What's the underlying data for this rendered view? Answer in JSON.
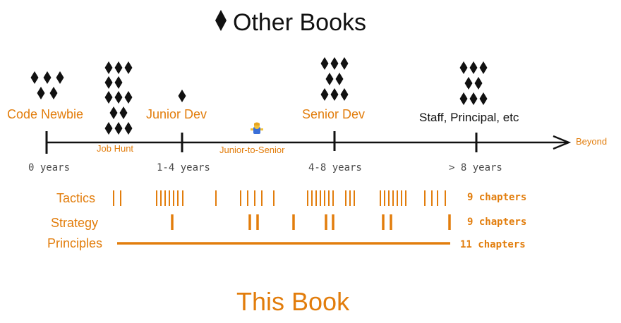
{
  "header": {
    "title": "Other Books",
    "title_icon": "diamond-icon"
  },
  "footer": {
    "title": "This Book"
  },
  "timeline": {
    "end_label": "Beyond",
    "ticks": [
      {
        "label": "0 years"
      },
      {
        "label": "1-4 years"
      },
      {
        "label": "4-8 years"
      },
      {
        "label": "> 8 years"
      }
    ],
    "stages": [
      {
        "label": "Code Newbie",
        "color": "#e27d0c",
        "diamond_count": 5
      },
      {
        "label": "Job Hunt",
        "color": "#e27d0c",
        "diamond_count": 13
      },
      {
        "label": "Junior Dev",
        "color": "#e27d0c",
        "diamond_count": 1
      },
      {
        "label": "Junior-to-Senior",
        "color": "#e27d0c",
        "diamond_count": 0
      },
      {
        "label": "Senior Dev",
        "color": "#e27d0c",
        "diamond_count": 8
      },
      {
        "label": "Staff, Principal, etc",
        "color": "#111111",
        "diamond_count": 8
      }
    ],
    "junior_to_senior_icon": "person-shrugging-icon"
  },
  "rows": [
    {
      "label": "Tactics",
      "chapters": "9 chapters"
    },
    {
      "label": "Strategy",
      "chapters": "9 chapters"
    },
    {
      "label": "Principles",
      "chapters": "11 chapters"
    }
  ],
  "colors": {
    "accent": "#e27d0c",
    "ink": "#111111"
  }
}
